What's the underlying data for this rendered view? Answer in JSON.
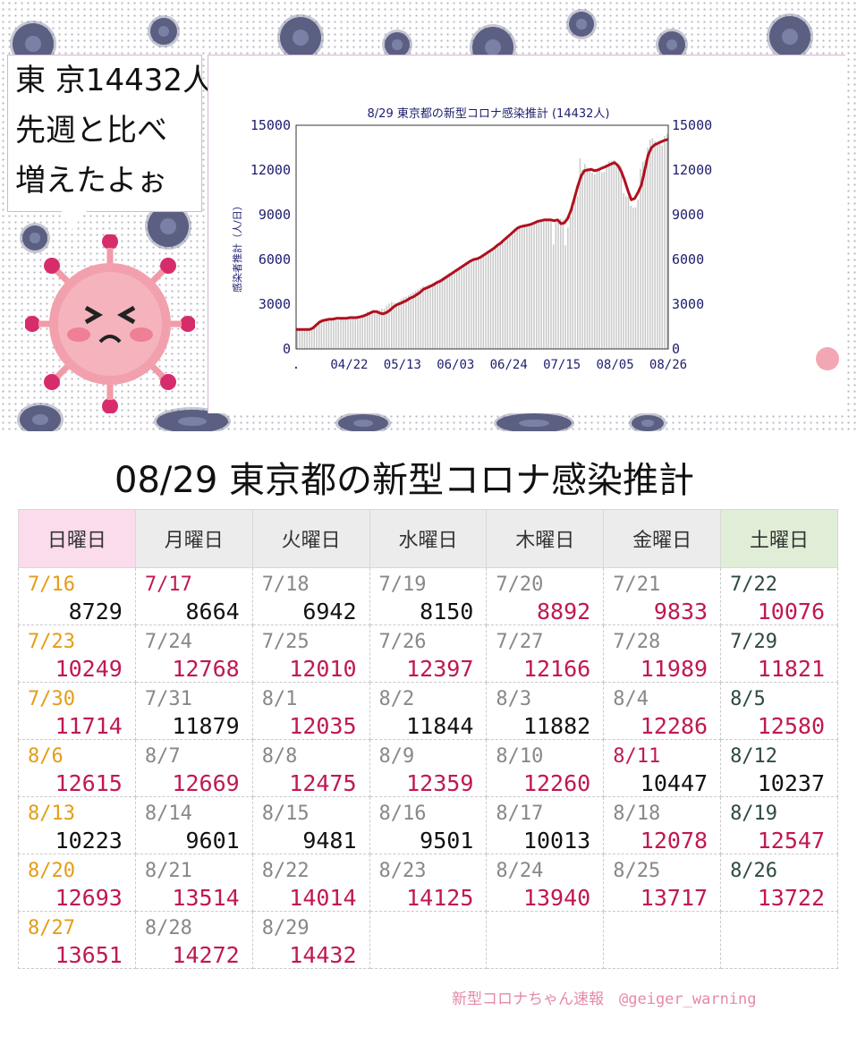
{
  "speech": {
    "lines": [
      "東 京14432人",
      "先週と比べ",
      "増えたよぉ"
    ]
  },
  "chart_data": {
    "type": "bar",
    "title": "8/29 東京都の新型コロナ感染推計 (14432人)",
    "ylabel": "感染者推計（人/日）",
    "ylim": [
      0,
      15000
    ],
    "y_ticks": [
      "0",
      "3000",
      "6000",
      "9000",
      "12000",
      "15000"
    ],
    "x_ticks": [
      ".",
      "04/22",
      "05/13",
      "06/03",
      "06/24",
      "07/15",
      "08/05",
      "08/26"
    ],
    "series": [
      {
        "values": [
          1300,
          1300,
          1300,
          1300,
          1300,
          1300,
          1300,
          1500,
          1700,
          1900,
          2000,
          1950,
          2000,
          1900,
          2000,
          2000,
          2000,
          1900,
          2050,
          2000,
          2100,
          2100,
          2100,
          2050,
          2150,
          2200,
          2200,
          2300,
          2300,
          2500,
          2500,
          2450,
          2400,
          2550,
          2600,
          2700,
          2700,
          2900,
          3050,
          3150,
          3100,
          3100,
          3200,
          3350,
          3450,
          3500,
          3600,
          3700,
          3800,
          3900,
          4000,
          4100,
          4200,
          4200,
          4300,
          4350,
          4450,
          4500,
          4600,
          4700,
          4800,
          4900,
          5000,
          5100,
          5200,
          5250,
          5350,
          5400,
          5500,
          5600,
          5700,
          5800,
          5850,
          5950,
          6000,
          6050,
          6100,
          6200,
          6300,
          6400,
          6500,
          6600,
          6750,
          6850,
          7000,
          7100,
          7200,
          7400,
          7500,
          7700,
          7900,
          8000,
          8100,
          8200,
          8300,
          8300,
          8350,
          8400,
          8500,
          8550,
          8600,
          8700,
          8650,
          8600,
          8700,
          8600,
          7000,
          8500,
          8600,
          8729,
          8664,
          6942,
          8150,
          8892,
          9833,
          10076,
          10249,
          12768,
          12010,
          12397,
          12166,
          11989,
          11821,
          11714,
          11879,
          12035,
          11844,
          11882,
          12286,
          12580,
          12615,
          12669,
          12475,
          12359,
          12260,
          10447,
          10237,
          10223,
          9601,
          9481,
          9501,
          10013,
          12078,
          12547,
          12693,
          13514,
          14014,
          14125,
          13940,
          13717,
          13722,
          13651,
          14272,
          14432
        ]
      },
      {
        "values": [
          1300,
          1300,
          1300,
          1300,
          1300,
          1400,
          1600,
          1800,
          1900,
          1950,
          2000,
          2000,
          2050,
          2050,
          2050,
          2050,
          2100,
          2100,
          2100,
          2150,
          2200,
          2300,
          2400,
          2500,
          2500,
          2400,
          2350,
          2450,
          2600,
          2800,
          2950,
          3050,
          3150,
          3250,
          3400,
          3500,
          3650,
          3800,
          4000,
          4100,
          4200,
          4300,
          4450,
          4550,
          4700,
          4850,
          5000,
          5150,
          5300,
          5450,
          5600,
          5750,
          5900,
          6000,
          6050,
          6150,
          6300,
          6450,
          6600,
          6750,
          6950,
          7100,
          7300,
          7500,
          7700,
          7900,
          8100,
          8200,
          8250,
          8300,
          8350,
          8450,
          8550,
          8600,
          8650,
          8650,
          8650,
          8600,
          8650,
          8400,
          8450,
          8750,
          9300,
          10100,
          10900,
          11600,
          11950,
          12000,
          12050,
          11950,
          12000,
          12100,
          12200,
          12300,
          12400,
          12500,
          12300,
          11900,
          11300,
          10600,
          10000,
          10100,
          10500,
          11000,
          12000,
          13000,
          13500,
          13700,
          13800,
          13900,
          14000,
          14050
        ]
      }
    ]
  },
  "table": {
    "title": "08/29 東京都の新型コロナ感染推計",
    "headers": [
      "日曜日",
      "月曜日",
      "火曜日",
      "水曜日",
      "木曜日",
      "金曜日",
      "土曜日"
    ],
    "rows": [
      [
        [
          "7/16",
          "8729"
        ],
        [
          "7/17",
          "8664"
        ],
        [
          "7/18",
          "6942"
        ],
        [
          "7/19",
          "8150"
        ],
        [
          "7/20",
          "8892"
        ],
        [
          "7/21",
          "9833"
        ],
        [
          "7/22",
          "10076"
        ]
      ],
      [
        [
          "7/23",
          "10249"
        ],
        [
          "7/24",
          "12768"
        ],
        [
          "7/25",
          "12010"
        ],
        [
          "7/26",
          "12397"
        ],
        [
          "7/27",
          "12166"
        ],
        [
          "7/28",
          "11989"
        ],
        [
          "7/29",
          "11821"
        ]
      ],
      [
        [
          "7/30",
          "11714"
        ],
        [
          "7/31",
          "11879"
        ],
        [
          "8/1",
          "12035"
        ],
        [
          "8/2",
          "11844"
        ],
        [
          "8/3",
          "11882"
        ],
        [
          "8/4",
          "12286"
        ],
        [
          "8/5",
          "12580"
        ]
      ],
      [
        [
          "8/6",
          "12615"
        ],
        [
          "8/7",
          "12669"
        ],
        [
          "8/8",
          "12475"
        ],
        [
          "8/9",
          "12359"
        ],
        [
          "8/10",
          "12260"
        ],
        [
          "8/11",
          "10447"
        ],
        [
          "8/12",
          "10237"
        ]
      ],
      [
        [
          "8/13",
          "10223"
        ],
        [
          "8/14",
          "9601"
        ],
        [
          "8/15",
          "9481"
        ],
        [
          "8/16",
          "9501"
        ],
        [
          "8/17",
          "10013"
        ],
        [
          "8/18",
          "12078"
        ],
        [
          "8/19",
          "12547"
        ]
      ],
      [
        [
          "8/20",
          "12693"
        ],
        [
          "8/21",
          "13514"
        ],
        [
          "8/22",
          "14014"
        ],
        [
          "8/23",
          "14125"
        ],
        [
          "8/24",
          "13940"
        ],
        [
          "8/25",
          "13717"
        ],
        [
          "8/26",
          "13722"
        ]
      ],
      [
        [
          "8/27",
          "13651"
        ],
        [
          "8/28",
          "14272"
        ],
        [
          "8/29",
          "14432"
        ],
        [
          "",
          ""
        ],
        [
          "",
          ""
        ],
        [
          "",
          ""
        ],
        [
          "",
          ""
        ]
      ]
    ],
    "up_flags": [
      [
        false,
        false,
        false,
        false,
        true,
        true,
        true
      ],
      [
        true,
        true,
        true,
        true,
        true,
        true,
        true
      ],
      [
        true,
        false,
        true,
        false,
        false,
        true,
        true
      ],
      [
        true,
        true,
        true,
        true,
        true,
        false,
        false
      ],
      [
        false,
        false,
        false,
        false,
        false,
        true,
        true
      ],
      [
        true,
        true,
        true,
        true,
        true,
        true,
        true
      ],
      [
        true,
        true,
        true,
        false,
        false,
        false,
        false
      ]
    ],
    "holiday_dates": [
      "7/17",
      "8/11"
    ]
  },
  "credit": "新型コロナちゃん速報　@geiger_warning",
  "colors": {
    "line": "#b0101e",
    "bar": "#c8c8c8",
    "axis": "#1d1d6e",
    "up_value": "#c0194e",
    "sunday_date": "#e39d16",
    "saturday_date": "#2d4a3e"
  }
}
